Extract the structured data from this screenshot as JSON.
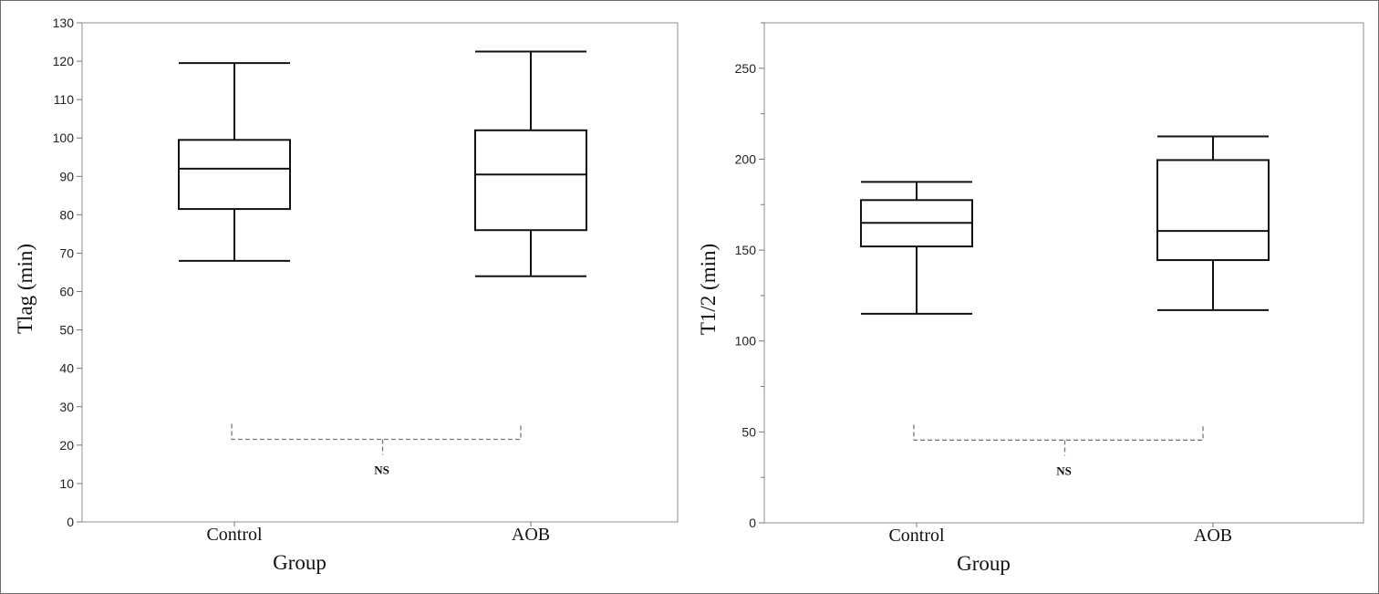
{
  "chart_data": [
    {
      "type": "box",
      "xlabel": "Group",
      "ylabel": "Tlag (min)",
      "categories": [
        "Control",
        "AOB"
      ],
      "ylim": [
        0,
        130
      ],
      "yticks": [
        0,
        10,
        20,
        30,
        40,
        50,
        60,
        70,
        80,
        90,
        100,
        110,
        120,
        130
      ],
      "boxes": [
        {
          "category": "Control",
          "min": 68,
          "q1": 81.5,
          "median": 92,
          "q3": 99.5,
          "max": 119.5
        },
        {
          "category": "AOB",
          "min": 64,
          "q1": 76,
          "median": 90.5,
          "q3": 102,
          "max": 122.5
        }
      ],
      "annotation": {
        "text": "NS",
        "y": 21.5
      }
    },
    {
      "type": "box",
      "xlabel": "Group",
      "ylabel": "T1/2 (min)",
      "categories": [
        "Control",
        "AOB"
      ],
      "ylim": [
        0,
        275
      ],
      "yticks": [
        0,
        50,
        100,
        150,
        200,
        250
      ],
      "minor_ticks": [
        25,
        75,
        125,
        175,
        225,
        275
      ],
      "boxes": [
        {
          "category": "Control",
          "min": 115,
          "q1": 152,
          "median": 165,
          "q3": 177.5,
          "max": 187.5
        },
        {
          "category": "AOB",
          "min": 117,
          "q1": 144.5,
          "median": 160.5,
          "q3": 199.5,
          "max": 212.5
        }
      ],
      "annotation": {
        "text": "NS",
        "y": 45.5
      }
    }
  ]
}
